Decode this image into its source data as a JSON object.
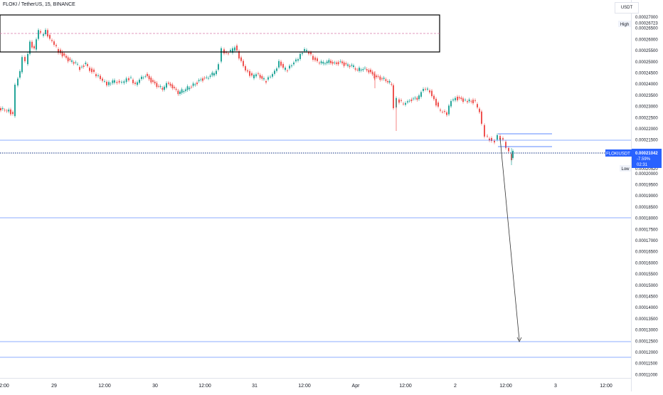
{
  "header": {
    "title": "FLOKI / TetherUS, 15, BINANCE",
    "currency": "USDT"
  },
  "price_scale": {
    "labels": [
      "0.00027000",
      "0.00026723",
      "0.00026500",
      "0.00026000",
      "0.00025500",
      "0.00025000",
      "0.00024500",
      "0.00024000",
      "0.00023500",
      "0.00023000",
      "0.00022500",
      "0.00022000",
      "0.00021500",
      "0.00021042",
      "0.00020520",
      "0.00020000",
      "0.00019500",
      "0.00019000",
      "0.00018500",
      "0.00018000",
      "0.00017500",
      "0.00017000",
      "0.00016500",
      "0.00016000",
      "0.00015500",
      "0.00015000",
      "0.00014500",
      "0.00014000",
      "0.00013500",
      "0.00013000",
      "0.00012500",
      "0.00012000",
      "0.00011500",
      "0.00011000"
    ],
    "high_tag": "High",
    "low_tag": "Low",
    "symbol_tag": "FLOKIUSDT",
    "last_price": "0.00021042",
    "change": "-7.59%",
    "countdown": "02:31"
  },
  "time_axis": {
    "labels": [
      "2:00",
      "29",
      "12:00",
      "30",
      "12:00",
      "31",
      "12:00",
      "Apr",
      "12:00",
      "2",
      "12:00",
      "3",
      "12:00"
    ]
  },
  "colors": {
    "up": "#26a69a",
    "down": "#ef5350",
    "hline": "#2962ff",
    "high_line": "#d977a9",
    "last_price": "#2962ff"
  }
}
